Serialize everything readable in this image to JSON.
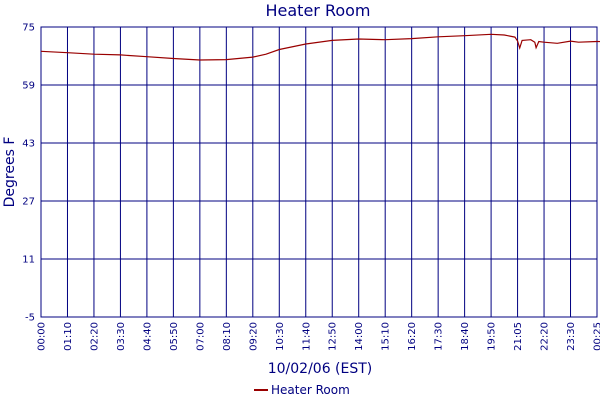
{
  "chart_data": {
    "type": "line",
    "title": "Heater Room",
    "xlabel": "10/02/06 (EST)",
    "ylabel": "Degrees F",
    "ylim": [
      -5,
      75
    ],
    "y_ticks": [
      "75",
      "59",
      "43",
      "27",
      "11",
      "-5"
    ],
    "x_ticks": [
      "00:00",
      "01:10",
      "02:20",
      "03:30",
      "04:40",
      "05:50",
      "07:00",
      "08:10",
      "09:20",
      "10:30",
      "11:40",
      "12:50",
      "14:00",
      "15:10",
      "16:20",
      "17:30",
      "18:40",
      "19:50",
      "21:05",
      "22:20",
      "23:30",
      "00:25"
    ],
    "grid": true,
    "legend_position": "bottom-center",
    "line_color": "#990000",
    "grid_color": "#000080",
    "series": [
      {
        "name": "Heater Room",
        "points": [
          [
            0,
            68.3
          ],
          [
            1,
            67.9
          ],
          [
            2,
            67.5
          ],
          [
            3,
            67.3
          ],
          [
            4,
            66.8
          ],
          [
            5,
            66.3
          ],
          [
            6,
            65.9
          ],
          [
            7,
            66.0
          ],
          [
            8,
            66.7
          ],
          [
            8.5,
            67.5
          ],
          [
            9,
            68.8
          ],
          [
            10,
            70.3
          ],
          [
            11,
            71.3
          ],
          [
            12,
            71.7
          ],
          [
            13,
            71.5
          ],
          [
            14,
            71.8
          ],
          [
            15,
            72.3
          ],
          [
            16,
            72.6
          ],
          [
            17,
            73.0
          ],
          [
            17.5,
            72.8
          ],
          [
            17.9,
            72.2
          ],
          [
            18.0,
            71.1
          ],
          [
            18.08,
            69.2
          ],
          [
            18.17,
            71.3
          ],
          [
            18.5,
            71.5
          ],
          [
            18.65,
            70.8
          ],
          [
            18.7,
            69.3
          ],
          [
            18.8,
            71.0
          ],
          [
            19,
            70.8
          ],
          [
            19.5,
            70.5
          ],
          [
            20,
            71.1
          ],
          [
            20.3,
            70.8
          ],
          [
            21,
            71.0
          ],
          [
            22,
            70.8
          ],
          [
            22.9,
            70.2
          ],
          [
            23.6,
            69.9
          ],
          [
            24,
            69.7
          ]
        ]
      }
    ]
  }
}
